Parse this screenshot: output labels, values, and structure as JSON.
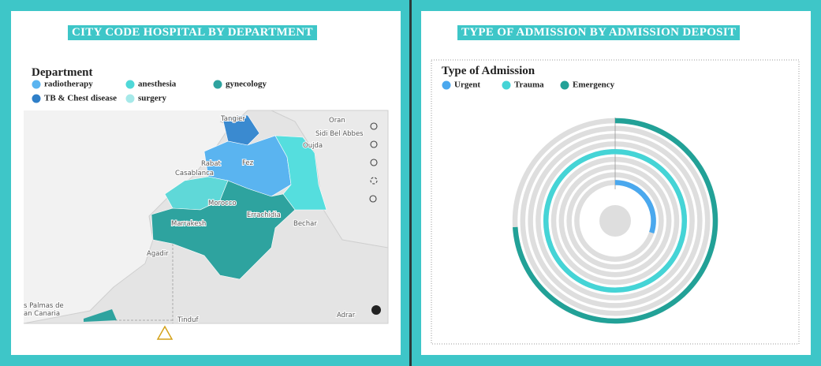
{
  "map": {
    "title": "CITY CODE HOSPITAL BY DEPARTMENT",
    "legend_title": "Department",
    "legend": [
      {
        "name": "radiotherapy",
        "color": "#5ab4f0"
      },
      {
        "name": "anesthesia",
        "color": "#4fd8d8"
      },
      {
        "name": "gynecology",
        "color": "#2ea39f"
      },
      {
        "name": "TB & Chest disease",
        "color": "#2f7fc8"
      },
      {
        "name": "surgery",
        "color": "#a6e9e9"
      }
    ],
    "places": [
      "Tangier",
      "Oran",
      "Sidi Bel Abbes",
      "Oujda",
      "Rabat",
      "Fez",
      "Casablanca",
      "Morocco",
      "Errachidia",
      "Marrakesh",
      "Bechar",
      "Agadir",
      "s Palmas de",
      "an Canaria",
      "Tinduf",
      "Adrar"
    ]
  },
  "chart_data": {
    "type": "radial_bar",
    "title": "TYPE OF ADMISSION BY ADMISSION DEPOSIT",
    "legend_title": "Type of Admission",
    "categories": [
      null,
      null,
      null,
      null,
      null,
      null,
      null,
      null,
      null
    ],
    "xlim": [
      0,
      100
    ],
    "series": [
      {
        "name": "Urgent",
        "color": "#4aa8ee",
        "values": [
          null,
          null,
          null,
          null,
          null,
          null,
          null,
          null,
          30
        ]
      },
      {
        "name": "Trauma",
        "color": "#45d4d6",
        "values": [
          null,
          null,
          null,
          null,
          100,
          null,
          null,
          null,
          null
        ]
      },
      {
        "name": "Emergency",
        "color": "#22a197",
        "values": [
          74,
          null,
          null,
          null,
          null,
          null,
          null,
          null,
          null
        ]
      }
    ]
  }
}
